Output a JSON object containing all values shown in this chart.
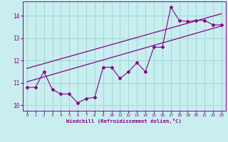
{
  "xlabel": "Windchill (Refroidissement éolien,°C)",
  "bg_color": "#c8eef0",
  "grid_color": "#a0d8d8",
  "line_color": "#880088",
  "xlim": [
    -0.5,
    23.5
  ],
  "ylim": [
    9.75,
    14.65
  ],
  "yticks": [
    10,
    11,
    12,
    13,
    14
  ],
  "xticks": [
    0,
    1,
    2,
    3,
    4,
    5,
    6,
    7,
    8,
    9,
    10,
    11,
    12,
    13,
    14,
    15,
    16,
    17,
    18,
    19,
    20,
    21,
    22,
    23
  ],
  "data_x": [
    0,
    1,
    2,
    3,
    4,
    5,
    6,
    7,
    8,
    9,
    10,
    11,
    12,
    13,
    14,
    15,
    16,
    17,
    18,
    19,
    20,
    21,
    22,
    23
  ],
  "data_y": [
    10.8,
    10.8,
    11.5,
    10.7,
    10.5,
    10.5,
    10.1,
    10.3,
    10.35,
    11.7,
    11.7,
    11.2,
    11.5,
    11.9,
    11.5,
    12.6,
    12.6,
    14.4,
    13.8,
    13.75,
    13.8,
    13.8,
    13.6,
    13.6
  ],
  "trend1_x": [
    0,
    23
  ],
  "trend1_y": [
    11.05,
    13.55
  ],
  "trend2_x": [
    0,
    23
  ],
  "trend2_y": [
    11.65,
    14.1
  ]
}
